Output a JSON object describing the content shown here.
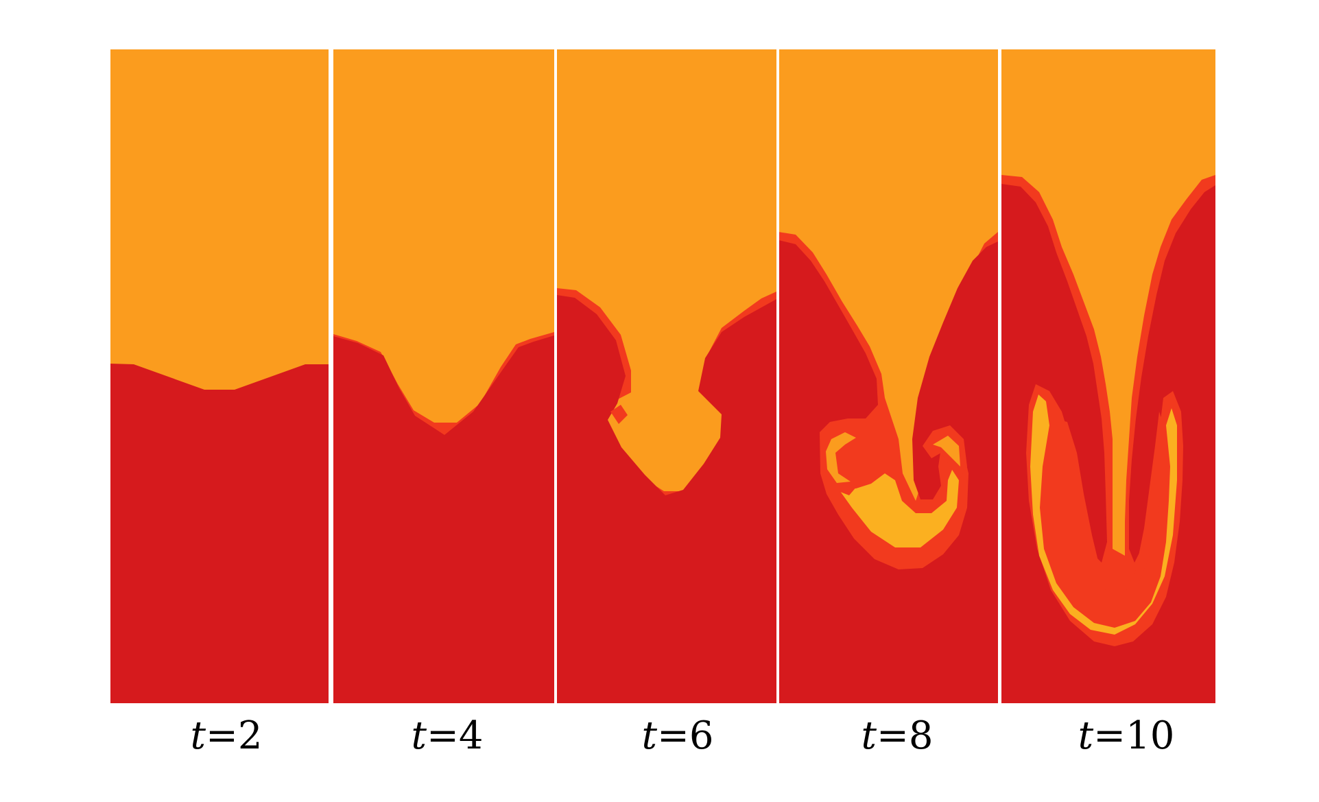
{
  "colors": {
    "background": "#ffffff",
    "upper_fluid": "#fb9c1e",
    "lower_fluid": "#d61a1d",
    "mixing_zone": "#f23a1e",
    "mixed_core": "#fbb020",
    "separator": "#ffffff"
  },
  "panels": [
    {
      "label_var": "t",
      "label_eq": "=2"
    },
    {
      "label_var": "t",
      "label_eq": "=4"
    },
    {
      "label_var": "t",
      "label_eq": "=6"
    },
    {
      "label_var": "t",
      "label_eq": "=8"
    },
    {
      "label_var": "t",
      "label_eq": "=10"
    }
  ]
}
